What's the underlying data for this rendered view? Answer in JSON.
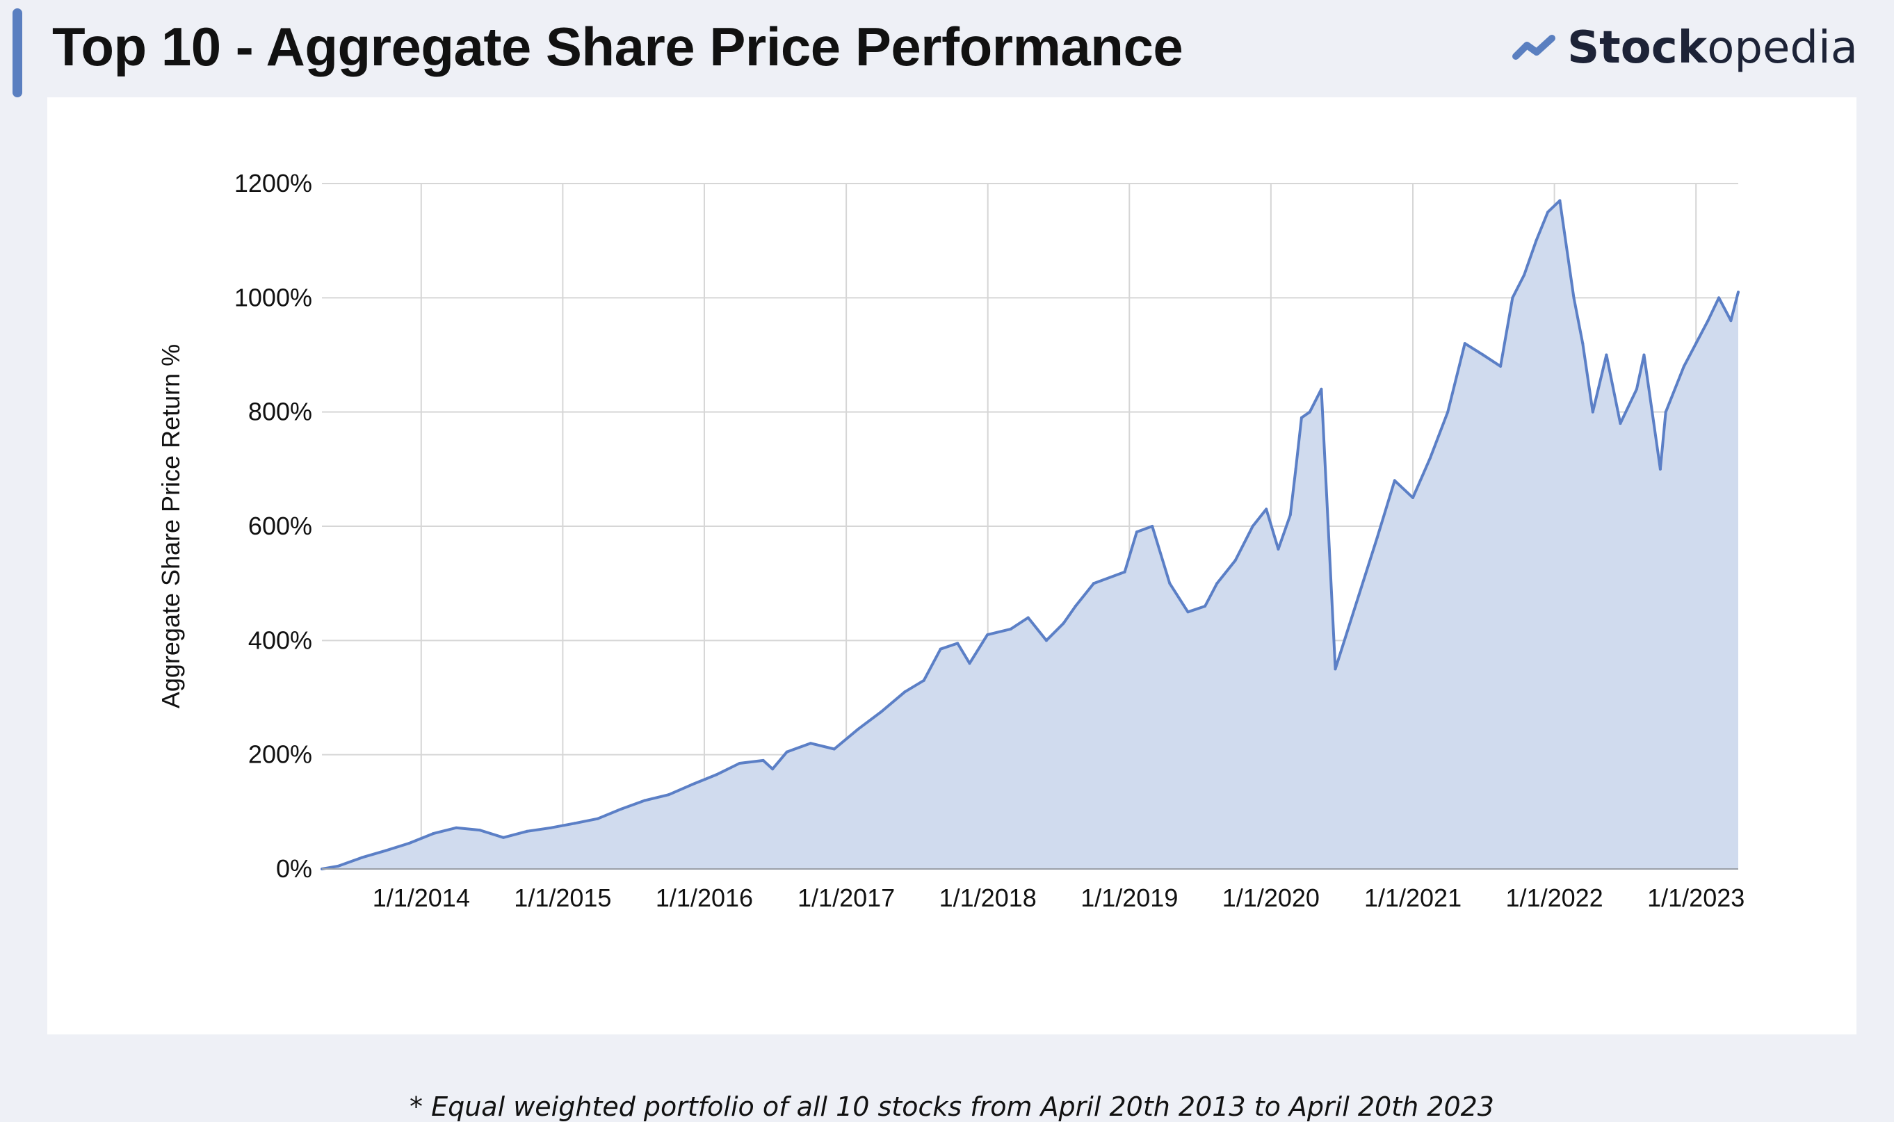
{
  "header": {
    "title": "Top 10 - Aggregate Share Price Performance",
    "brand_bold": "Stock",
    "brand_light": "opedia",
    "brand_icon": "trend-chart-icon",
    "accent_color": "#5a7fc0"
  },
  "footnote": "* Equal weighted portfolio of all 10 stocks from April 20th 2013 to April 20th 2023",
  "chart_data": {
    "type": "area",
    "title": "",
    "ylabel": "Aggregate Share Price Return %",
    "xlabel": "",
    "ylim": [
      0,
      1200
    ],
    "y_ticks": [
      "0%",
      "200%",
      "400%",
      "600%",
      "800%",
      "1000%",
      "1200%"
    ],
    "x_tick_dates": [
      "2014-01-01",
      "2015-01-01",
      "2016-01-01",
      "2017-01-01",
      "2018-01-01",
      "2019-01-01",
      "2020-01-01",
      "2021-01-01",
      "2022-01-01",
      "2023-01-01"
    ],
    "x_tick_labels": [
      "1/1/2014",
      "1/1/2015",
      "1/1/2016",
      "1/1/2017",
      "1/1/2018",
      "1/1/2019",
      "1/1/2020",
      "1/1/2021",
      "1/1/2022",
      "1/1/2023"
    ],
    "x_range": [
      "2013-04-20",
      "2023-04-20"
    ],
    "grid": true,
    "line_color": "#5b7fc6",
    "fill_color": "#d0dbee",
    "series": [
      {
        "x": [
          "2013-04-20",
          "2013-06-01",
          "2013-08-01",
          "2013-10-01",
          "2013-12-01",
          "2014-02-01",
          "2014-04-01",
          "2014-06-01",
          "2014-08-01",
          "2014-10-01",
          "2014-12-01",
          "2015-02-01",
          "2015-04-01",
          "2015-06-01",
          "2015-08-01",
          "2015-10-01",
          "2015-12-01",
          "2016-02-01",
          "2016-04-01",
          "2016-06-01",
          "2016-06-25",
          "2016-08-01",
          "2016-10-01",
          "2016-12-01",
          "2017-02-01",
          "2017-04-01",
          "2017-06-01",
          "2017-07-20",
          "2017-09-01",
          "2017-10-15",
          "2017-11-15",
          "2017-12-31",
          "2018-03-01",
          "2018-04-15",
          "2018-06-01",
          "2018-07-15",
          "2018-08-15",
          "2018-10-01",
          "2018-12-20",
          "2019-01-20",
          "2019-03-01",
          "2019-04-15",
          "2019-06-01",
          "2019-07-15",
          "2019-08-15",
          "2019-10-01",
          "2019-11-15",
          "2019-12-20",
          "2020-01-20",
          "2020-02-20",
          "2020-03-05",
          "2020-03-20",
          "2020-04-10",
          "2020-05-10",
          "2020-06-15",
          "2020-08-15",
          "2020-10-01",
          "2020-11-15",
          "2021-01-01",
          "2021-02-15",
          "2021-04-01",
          "2021-05-15",
          "2021-07-01",
          "2021-08-15",
          "2021-09-15",
          "2021-10-15",
          "2021-11-15",
          "2021-12-15",
          "2022-01-15",
          "2022-02-20",
          "2022-03-15",
          "2022-04-10",
          "2022-05-15",
          "2022-06-20",
          "2022-08-01",
          "2022-08-20",
          "2022-10-01",
          "2022-10-15",
          "2022-12-01",
          "2023-01-01",
          "2023-02-01",
          "2023-03-01",
          "2023-04-01",
          "2023-04-20"
        ],
        "y": [
          0,
          5,
          20,
          32,
          45,
          62,
          72,
          68,
          55,
          66,
          72,
          80,
          88,
          105,
          120,
          130,
          148,
          165,
          185,
          190,
          175,
          205,
          220,
          210,
          245,
          275,
          310,
          330,
          385,
          395,
          360,
          410,
          420,
          440,
          400,
          430,
          460,
          500,
          520,
          590,
          600,
          500,
          450,
          460,
          500,
          540,
          600,
          630,
          560,
          620,
          700,
          790,
          800,
          840,
          350,
          480,
          580,
          680,
          650,
          720,
          800,
          920,
          900,
          880,
          1000,
          1040,
          1100,
          1150,
          1170,
          1000,
          920,
          800,
          900,
          780,
          840,
          900,
          700,
          800,
          880,
          920,
          960,
          1000,
          960,
          1010
        ]
      }
    ]
  }
}
